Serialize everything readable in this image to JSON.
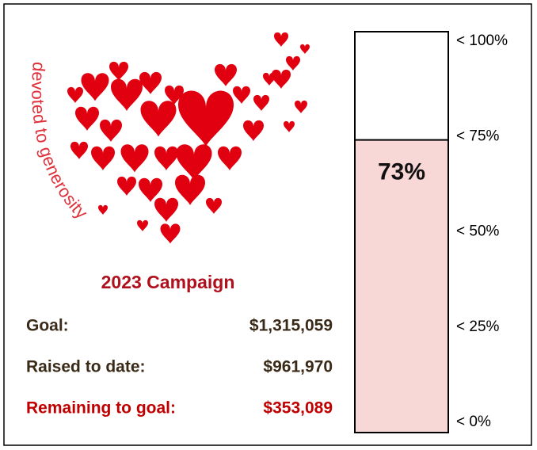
{
  "chart_data": {
    "type": "bar",
    "values": [
      73
    ],
    "value_labels": [
      "73%"
    ],
    "color": "#f8d7d7",
    "ylim": [
      0,
      100
    ],
    "yticks": [
      {
        "value": 0,
        "label": "< 0%"
      },
      {
        "value": 25,
        "label": "< 25%"
      },
      {
        "value": 50,
        "label": "< 50%"
      },
      {
        "value": 75,
        "label": "< 75%"
      },
      {
        "value": 100,
        "label": "< 100%"
      }
    ]
  },
  "logo_text": "devoted to generosity",
  "campaign": {
    "title": "2023 Campaign",
    "rows": [
      [
        "Goal:",
        "$1,315,059"
      ],
      [
        "Raised to date:",
        "$961,970"
      ],
      [
        "Remaining to goal:",
        "$353,089"
      ]
    ]
  }
}
